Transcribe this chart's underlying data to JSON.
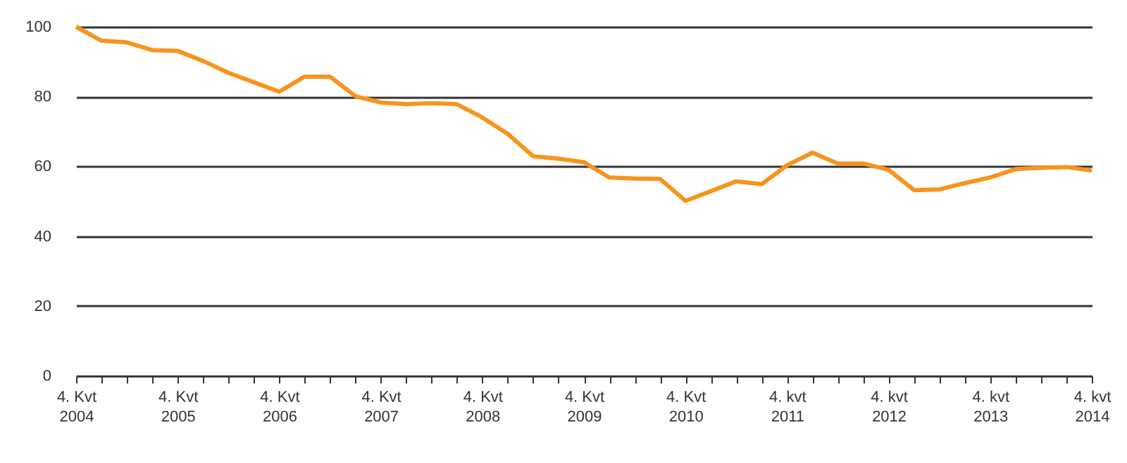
{
  "chart_data": {
    "type": "line",
    "categories": [
      "4. Kvt\n2004",
      null,
      null,
      null,
      "4. Kvt\n2005",
      null,
      null,
      null,
      "4. Kvt\n2006",
      null,
      null,
      null,
      "4. Kvt\n2007",
      null,
      null,
      null,
      "4. Kvt\n2008",
      null,
      null,
      null,
      "4. Kvt\n2009",
      null,
      null,
      null,
      "4. Kvt\n2010",
      null,
      null,
      null,
      "4. kvt\n2011",
      null,
      null,
      null,
      "4. kvt\n2012",
      null,
      null,
      null,
      "4. kvt\n2013",
      null,
      null,
      null,
      "4. kvt\n2014"
    ],
    "series": [
      {
        "color": "#f7941d",
        "values": [
          100,
          96,
          95.5,
          93.3,
          93.1,
          90.2,
          86.8,
          84.1,
          81.4,
          85.7,
          85.7,
          80.1,
          78.3,
          77.8,
          78.1,
          77.8,
          74.0,
          69.3,
          62.9,
          62.2,
          61.2,
          56.8,
          56.5,
          56.4,
          50.1,
          52.9,
          55.7,
          54.9,
          60.3,
          63.9,
          60.8,
          60.8,
          59.0,
          53.2,
          53.4,
          55.2,
          56.8,
          59.2,
          59.6,
          59.8,
          58.8
        ]
      }
    ],
    "ylim": [
      0,
      100
    ],
    "yticks": [
      0,
      20,
      40,
      60,
      80,
      100
    ],
    "grid": "y",
    "marker": "none",
    "line_style": "solid"
  }
}
